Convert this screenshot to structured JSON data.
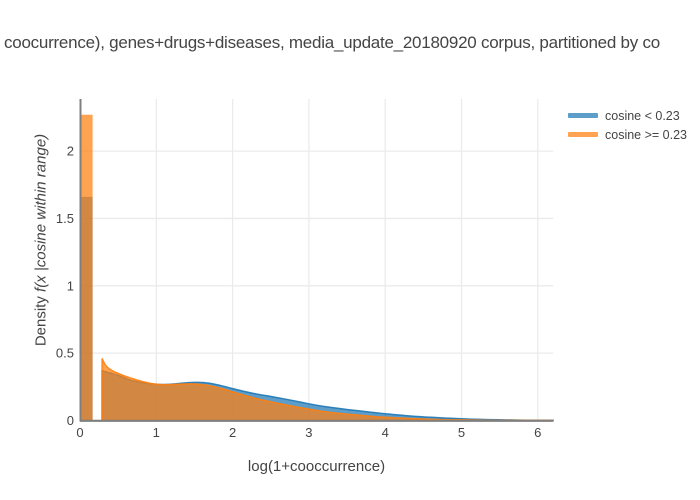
{
  "title": {
    "text": "coocurrence), genes+drugs+diseases, media_update_20180920 corpus, partitioned by co"
  },
  "colors": {
    "blue": "#1f77b4",
    "orange": "#ff7f0e",
    "grid": "#ebebeb",
    "axis_line": "#7f7f7f",
    "text": "#444444",
    "background": "#ffffff"
  },
  "chart_data": {
    "type": "area",
    "title": "coocurrence), genes+drugs+diseases, media_update_20180920 corpus, partitioned by co",
    "xlabel": "log(1+cooccurrence)",
    "ylabel": "Density f(x |cosine within range)",
    "ylabel_plain": "Density ",
    "ylabel_italic": "f(x |cosine within range)",
    "xlim": [
      0,
      6.2
    ],
    "ylim": [
      0,
      2.39
    ],
    "x_ticks": [
      "0",
      "1",
      "2",
      "3",
      "4",
      "5",
      "6"
    ],
    "x_tick_values": [
      0,
      1,
      2,
      3,
      4,
      5,
      6
    ],
    "y_ticks": [
      "0",
      "0.5",
      "1",
      "1.5",
      "2"
    ],
    "y_tick_values": [
      0,
      0.5,
      1,
      1.5,
      2
    ],
    "grid": true,
    "legend_position": "top-right",
    "fill_opacity": 0.72,
    "histogram_bars": [
      {
        "series": "cosine < 0.23",
        "color": "#1f77b4",
        "x0": 0.005,
        "x1": 0.165,
        "height": 1.66
      },
      {
        "series": "cosine >= 0.23",
        "color": "#ff7f0e",
        "x0": 0.005,
        "x1": 0.165,
        "height": 2.27
      }
    ],
    "series": [
      {
        "name": "cosine < 0.23",
        "color": "#1f77b4",
        "points": [
          [
            0.29,
            0.37
          ],
          [
            0.4,
            0.352
          ],
          [
            0.5,
            0.335
          ],
          [
            0.65,
            0.302
          ],
          [
            0.8,
            0.282
          ],
          [
            0.95,
            0.271
          ],
          [
            1.1,
            0.267
          ],
          [
            1.25,
            0.272
          ],
          [
            1.4,
            0.28
          ],
          [
            1.55,
            0.283
          ],
          [
            1.7,
            0.276
          ],
          [
            1.85,
            0.258
          ],
          [
            2.0,
            0.237
          ],
          [
            2.15,
            0.216
          ],
          [
            2.3,
            0.198
          ],
          [
            2.45,
            0.183
          ],
          [
            2.6,
            0.168
          ],
          [
            2.8,
            0.147
          ],
          [
            3.0,
            0.124
          ],
          [
            3.2,
            0.104
          ],
          [
            3.4,
            0.089
          ],
          [
            3.6,
            0.075
          ],
          [
            3.8,
            0.062
          ],
          [
            4.0,
            0.05
          ],
          [
            4.25,
            0.037
          ],
          [
            4.5,
            0.027
          ],
          [
            4.75,
            0.019
          ],
          [
            5.0,
            0.013
          ],
          [
            5.25,
            0.008
          ],
          [
            5.5,
            0.005
          ],
          [
            5.75,
            0.003
          ],
          [
            6.0,
            0.002
          ],
          [
            6.2,
            0.001
          ]
        ]
      },
      {
        "name": "cosine >= 0.23",
        "color": "#ff7f0e",
        "points": [
          [
            0.29,
            0.46
          ],
          [
            0.33,
            0.415
          ],
          [
            0.38,
            0.385
          ],
          [
            0.45,
            0.362
          ],
          [
            0.55,
            0.338
          ],
          [
            0.65,
            0.318
          ],
          [
            0.75,
            0.3
          ],
          [
            0.85,
            0.285
          ],
          [
            0.95,
            0.273
          ],
          [
            1.1,
            0.266
          ],
          [
            1.25,
            0.268
          ],
          [
            1.4,
            0.272
          ],
          [
            1.55,
            0.27
          ],
          [
            1.7,
            0.258
          ],
          [
            1.85,
            0.238
          ],
          [
            2.0,
            0.213
          ],
          [
            2.15,
            0.188
          ],
          [
            2.3,
            0.165
          ],
          [
            2.45,
            0.146
          ],
          [
            2.6,
            0.127
          ],
          [
            2.8,
            0.105
          ],
          [
            3.0,
            0.085
          ],
          [
            3.2,
            0.066
          ],
          [
            3.4,
            0.053
          ],
          [
            3.6,
            0.042
          ],
          [
            3.8,
            0.032
          ],
          [
            4.0,
            0.024
          ],
          [
            4.25,
            0.016
          ],
          [
            4.5,
            0.011
          ],
          [
            4.75,
            0.007
          ],
          [
            5.0,
            0.005
          ],
          [
            5.25,
            0.003
          ],
          [
            5.5,
            0.002
          ],
          [
            6.0,
            0.001
          ],
          [
            6.2,
            0.0005
          ]
        ]
      }
    ]
  },
  "legend": {
    "items": [
      {
        "label": "cosine < 0.23",
        "color": "#1f77b4"
      },
      {
        "label": "cosine >= 0.23",
        "color": "#ff7f0e"
      }
    ]
  }
}
